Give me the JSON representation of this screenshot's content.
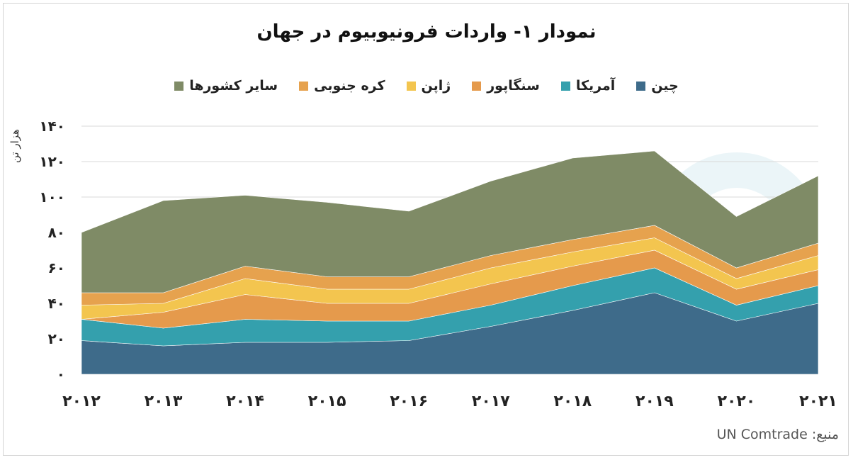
{
  "chart_data": {
    "type": "area",
    "stacked": true,
    "title": "نمودار ۱- واردات فرونیوبیوم در جهان",
    "ylabel": "هزار تن",
    "categories": [
      "۲۰۱۲",
      "۲۰۱۳",
      "۲۰۱۴",
      "۲۰۱۵",
      "۲۰۱۶",
      "۲۰۱۷",
      "۲۰۱۸",
      "۲۰۱۹",
      "۲۰۲۰",
      "۲۰۲۱"
    ],
    "yticks": [
      "۰",
      "۲۰",
      "۴۰",
      "۶۰",
      "۸۰",
      "۱۰۰",
      "۱۲۰",
      "۱۴۰"
    ],
    "ylim": [
      0,
      140
    ],
    "legend_position": "top",
    "series": [
      {
        "name": "چین",
        "color": "#3e6b8a",
        "values": [
          19,
          16,
          18,
          18,
          19,
          27,
          36,
          46,
          30,
          40
        ]
      },
      {
        "name": "آمریکا",
        "color": "#34a0ad",
        "values": [
          12,
          10,
          13,
          12,
          11,
          12,
          14,
          14,
          9,
          10
        ]
      },
      {
        "name": "سنگاپور",
        "color": "#e59a4c",
        "values": [
          0,
          9,
          14,
          10,
          10,
          12,
          11,
          10,
          9,
          9
        ]
      },
      {
        "name": "ژاپن",
        "color": "#f3c54f",
        "values": [
          8,
          5,
          9,
          8,
          8,
          9,
          8,
          7,
          6,
          8
        ]
      },
      {
        "name": "کره جنوبی",
        "color": "#e6a24e",
        "values": [
          7,
          6,
          7,
          7,
          7,
          7,
          7,
          7,
          6,
          7
        ]
      },
      {
        "name": "سایر کشورها",
        "color": "#7f8b66",
        "values": [
          34,
          52,
          40,
          42,
          37,
          42,
          46,
          42,
          29,
          38
        ]
      }
    ]
  },
  "source": "منبع: UN Comtrade"
}
